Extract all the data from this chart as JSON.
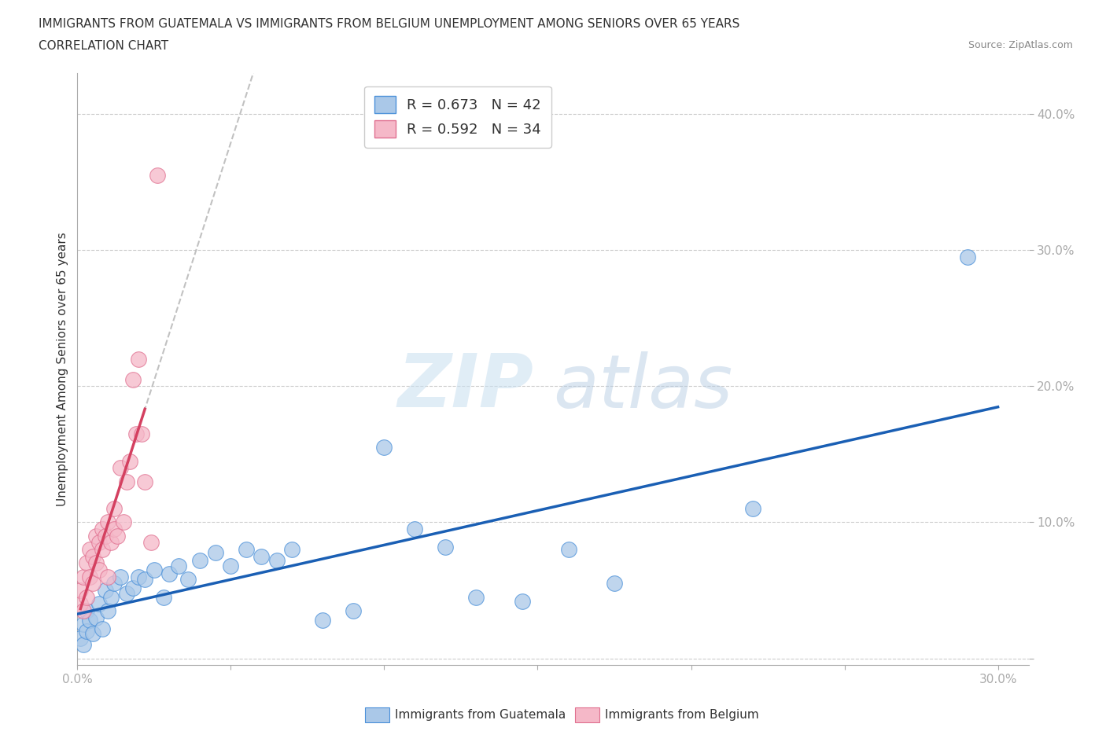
{
  "title_line1": "IMMIGRANTS FROM GUATEMALA VS IMMIGRANTS FROM BELGIUM UNEMPLOYMENT AMONG SENIORS OVER 65 YEARS",
  "title_line2": "CORRELATION CHART",
  "source": "Source: ZipAtlas.com",
  "ylabel": "Unemployment Among Seniors over 65 years",
  "watermark_zip": "ZIP",
  "watermark_atlas": "atlas",
  "xlim": [
    0.0,
    0.31
  ],
  "ylim": [
    -0.005,
    0.43
  ],
  "guatemala_color": "#aac8e8",
  "guatemala_edge_color": "#4a90d9",
  "guatemala_line_color": "#1a5fb4",
  "belgium_color": "#f5b8c8",
  "belgium_edge_color": "#e07090",
  "belgium_line_color": "#d44060",
  "R_guatemala": 0.673,
  "N_guatemala": 42,
  "R_belgium": 0.592,
  "N_belgium": 34,
  "guatemala_x": [
    0.001,
    0.002,
    0.002,
    0.003,
    0.003,
    0.004,
    0.005,
    0.006,
    0.007,
    0.008,
    0.009,
    0.01,
    0.011,
    0.012,
    0.014,
    0.016,
    0.018,
    0.02,
    0.022,
    0.025,
    0.028,
    0.03,
    0.033,
    0.036,
    0.04,
    0.045,
    0.05,
    0.055,
    0.06,
    0.065,
    0.07,
    0.08,
    0.09,
    0.1,
    0.11,
    0.12,
    0.13,
    0.145,
    0.16,
    0.175,
    0.22,
    0.29
  ],
  "guatemala_y": [
    0.015,
    0.01,
    0.025,
    0.02,
    0.035,
    0.028,
    0.018,
    0.03,
    0.04,
    0.022,
    0.05,
    0.035,
    0.045,
    0.055,
    0.06,
    0.048,
    0.052,
    0.06,
    0.058,
    0.065,
    0.045,
    0.062,
    0.068,
    0.058,
    0.072,
    0.078,
    0.068,
    0.08,
    0.075,
    0.072,
    0.08,
    0.028,
    0.035,
    0.155,
    0.095,
    0.082,
    0.045,
    0.042,
    0.08,
    0.055,
    0.11,
    0.295
  ],
  "belgium_x": [
    0.001,
    0.001,
    0.002,
    0.002,
    0.003,
    0.003,
    0.004,
    0.004,
    0.005,
    0.005,
    0.006,
    0.006,
    0.007,
    0.007,
    0.008,
    0.008,
    0.009,
    0.01,
    0.01,
    0.011,
    0.012,
    0.012,
    0.013,
    0.014,
    0.015,
    0.016,
    0.017,
    0.018,
    0.019,
    0.02,
    0.021,
    0.022,
    0.024,
    0.026
  ],
  "belgium_y": [
    0.04,
    0.05,
    0.035,
    0.06,
    0.045,
    0.07,
    0.06,
    0.08,
    0.055,
    0.075,
    0.07,
    0.09,
    0.065,
    0.085,
    0.08,
    0.095,
    0.09,
    0.06,
    0.1,
    0.085,
    0.095,
    0.11,
    0.09,
    0.14,
    0.1,
    0.13,
    0.145,
    0.205,
    0.165,
    0.22,
    0.165,
    0.13,
    0.085,
    0.355
  ],
  "title_fontsize": 11,
  "subtitle_fontsize": 11,
  "source_fontsize": 9,
  "axis_label_fontsize": 11,
  "tick_fontsize": 11,
  "legend_fontsize": 13,
  "background_color": "#ffffff",
  "grid_color": "#cccccc"
}
